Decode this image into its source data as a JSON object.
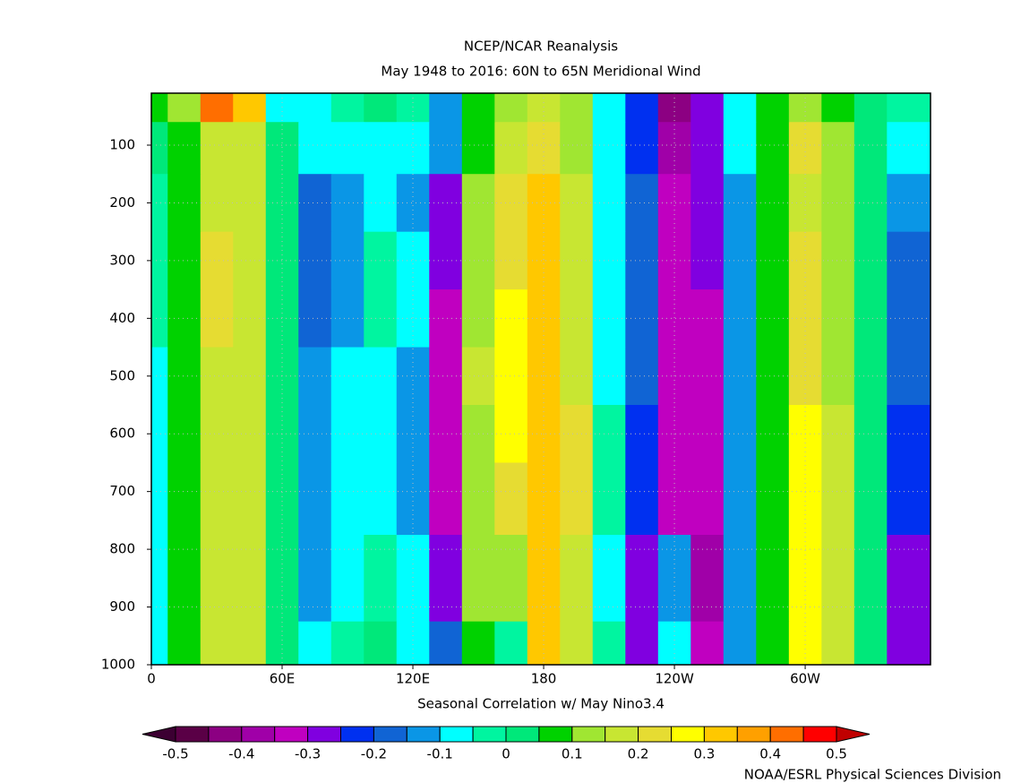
{
  "chart_data": {
    "type": "contour",
    "title": "NCEP/NCAR Reanalysis",
    "subtitle": "May 1948 to 2016: 60N to 65N  Meridional Wind",
    "xlabel": "Seasonal Correlation w/ May Nino3.4",
    "credit": "NOAA/ESRL Physical Sciences Division",
    "x": [
      0,
      15,
      30,
      45,
      60,
      75,
      90,
      105,
      120,
      135,
      150,
      165,
      180,
      195,
      210,
      225,
      240,
      255,
      270,
      285,
      300,
      315,
      330,
      345
    ],
    "y": [
      20,
      100,
      200,
      300,
      400,
      500,
      600,
      700,
      850,
      1000
    ],
    "values": [
      [
        0.05,
        0.1,
        0.4,
        0.3,
        -0.07,
        -0.07,
        -0.02,
        0.02,
        -0.03,
        -0.12,
        0.05,
        0.12,
        0.15,
        0.12,
        -0.1,
        -0.25,
        -0.45,
        -0.3,
        -0.07,
        0.07,
        0.12,
        0.07,
        0.02,
        -0.02
      ],
      [
        0.02,
        0.08,
        0.18,
        0.15,
        0.02,
        -0.08,
        -0.07,
        -0.08,
        -0.07,
        -0.12,
        0.08,
        0.17,
        0.22,
        0.13,
        -0.06,
        -0.22,
        -0.38,
        -0.3,
        -0.1,
        0.08,
        0.22,
        0.13,
        0.0,
        -0.08
      ],
      [
        -0.02,
        0.07,
        0.17,
        0.15,
        0.0,
        -0.17,
        -0.12,
        -0.07,
        -0.12,
        -0.27,
        0.1,
        0.2,
        0.3,
        0.15,
        -0.06,
        -0.2,
        -0.35,
        -0.3,
        -0.12,
        0.07,
        0.17,
        0.12,
        0.02,
        -0.15
      ],
      [
        -0.05,
        0.07,
        0.22,
        0.15,
        0.02,
        -0.17,
        -0.15,
        -0.03,
        -0.08,
        -0.3,
        0.1,
        0.2,
        0.32,
        0.17,
        -0.07,
        -0.2,
        -0.35,
        -0.3,
        -0.15,
        0.07,
        0.2,
        0.12,
        0.0,
        -0.18
      ],
      [
        -0.05,
        0.07,
        0.2,
        0.15,
        0.0,
        -0.17,
        -0.12,
        -0.05,
        -0.1,
        -0.33,
        0.12,
        0.25,
        0.32,
        0.17,
        -0.07,
        -0.2,
        -0.35,
        -0.32,
        -0.15,
        0.07,
        0.2,
        0.12,
        0.0,
        -0.18
      ],
      [
        -0.07,
        0.07,
        0.18,
        0.15,
        0.0,
        -0.15,
        -0.1,
        -0.07,
        -0.12,
        -0.33,
        0.15,
        0.28,
        0.32,
        0.17,
        -0.07,
        -0.2,
        -0.35,
        -0.32,
        -0.13,
        0.07,
        0.2,
        0.12,
        0.0,
        -0.2
      ],
      [
        -0.07,
        0.07,
        0.17,
        0.17,
        0.0,
        -0.15,
        -0.08,
        -0.07,
        -0.12,
        -0.33,
        0.12,
        0.27,
        0.32,
        0.2,
        -0.05,
        -0.22,
        -0.35,
        -0.32,
        -0.12,
        0.07,
        0.25,
        0.15,
        0.0,
        -0.22
      ],
      [
        -0.08,
        0.05,
        0.17,
        0.18,
        0.0,
        -0.15,
        -0.07,
        -0.07,
        -0.12,
        -0.33,
        0.13,
        0.22,
        0.33,
        0.2,
        -0.05,
        -0.22,
        -0.35,
        -0.35,
        -0.12,
        0.07,
        0.27,
        0.17,
        0.02,
        -0.25
      ],
      [
        -0.08,
        0.05,
        0.18,
        0.17,
        0.02,
        -0.12,
        -0.07,
        -0.05,
        -0.1,
        -0.3,
        0.12,
        0.12,
        0.33,
        0.18,
        -0.08,
        -0.3,
        -0.12,
        -0.4,
        -0.12,
        0.08,
        0.27,
        0.17,
        0.02,
        -0.3
      ],
      [
        -0.07,
        0.05,
        0.15,
        0.15,
        0.02,
        -0.1,
        -0.03,
        0.0,
        -0.07,
        -0.2,
        0.05,
        -0.02,
        0.3,
        0.15,
        -0.05,
        -0.3,
        -0.07,
        -0.35,
        -0.12,
        0.05,
        0.25,
        0.15,
        0.02,
        -0.3
      ]
    ],
    "xlim": [
      0,
      357.5
    ],
    "ylim": [
      1000,
      10
    ],
    "xticks": [
      0,
      {
        "value": 60,
        "label": "60E"
      },
      {
        "value": 120,
        "label": "120E"
      },
      180,
      {
        "value": 240,
        "label": "120W"
      },
      {
        "value": 300,
        "label": "60W"
      }
    ],
    "yticks": [
      100,
      200,
      300,
      400,
      500,
      600,
      700,
      800,
      900,
      1000
    ],
    "grid": true,
    "colorbar": {
      "levels": [
        -0.5,
        -0.45,
        -0.4,
        -0.35,
        -0.3,
        -0.25,
        -0.2,
        -0.15,
        -0.1,
        -0.05,
        0,
        0.05,
        0.1,
        0.15,
        0.2,
        0.25,
        0.3,
        0.35,
        0.4,
        0.45,
        0.5
      ],
      "colors": [
        "#5a0046",
        "#8c0082",
        "#a000a8",
        "#c000c0",
        "#8000e0",
        "#0030f0",
        "#1064d4",
        "#0a96e6",
        "#00ffff",
        "#00f5a0",
        "#00e87a",
        "#00d200",
        "#a0e632",
        "#c8e632",
        "#e6dc32",
        "#ffff00",
        "#ffc800",
        "#ffa000",
        "#ff6e00",
        "#ff0000"
      ],
      "under_color": "#3c0032",
      "over_color": "#c00000",
      "ticks": [
        -0.5,
        -0.4,
        -0.3,
        -0.2,
        -0.1,
        0,
        0.1,
        0.2,
        0.3,
        0.4,
        0.5
      ]
    }
  }
}
